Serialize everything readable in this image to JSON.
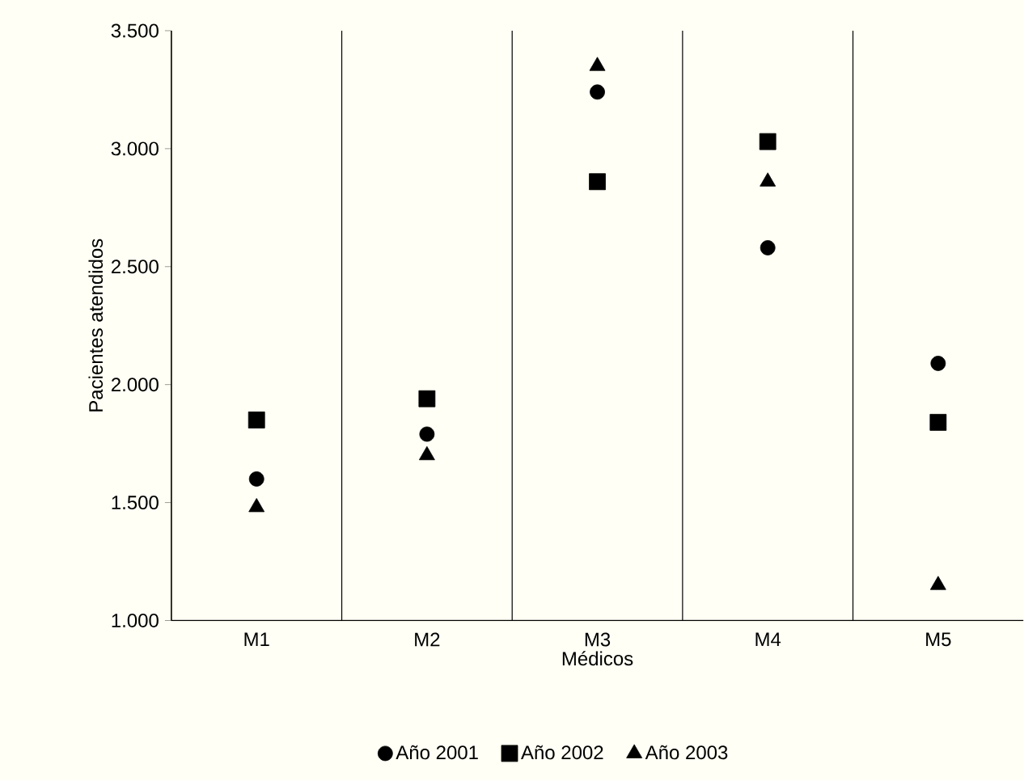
{
  "chart_data": {
    "type": "scatter",
    "xlabel": "Médicos",
    "ylabel": "Pacientes atendidos",
    "categories": [
      "M1",
      "M2",
      "M3",
      "M4",
      "M5"
    ],
    "series": [
      {
        "name": "Año 2001",
        "color": "#000000",
        "marker": "circle",
        "values": [
          1600,
          1790,
          3240,
          2580,
          2090
        ]
      },
      {
        "name": "Año 2002",
        "color": "#000000",
        "marker": "square",
        "values": [
          1850,
          1940,
          2860,
          3030,
          1840
        ]
      },
      {
        "name": "Año 2003",
        "color": "#000000",
        "marker": "triangle",
        "values": [
          1480,
          1700,
          3350,
          2860,
          1150
        ]
      }
    ],
    "ylim": [
      1000,
      3500
    ],
    "yticks": [
      {
        "value": 1000,
        "label": "1.000"
      },
      {
        "value": 1500,
        "label": "1.500"
      },
      {
        "value": 2000,
        "label": "2.000"
      },
      {
        "value": 2500,
        "label": "2.500"
      },
      {
        "value": 3000,
        "label": "3.000"
      },
      {
        "value": 3500,
        "label": "3.500"
      }
    ],
    "grid": "x",
    "legend": "bottom"
  }
}
